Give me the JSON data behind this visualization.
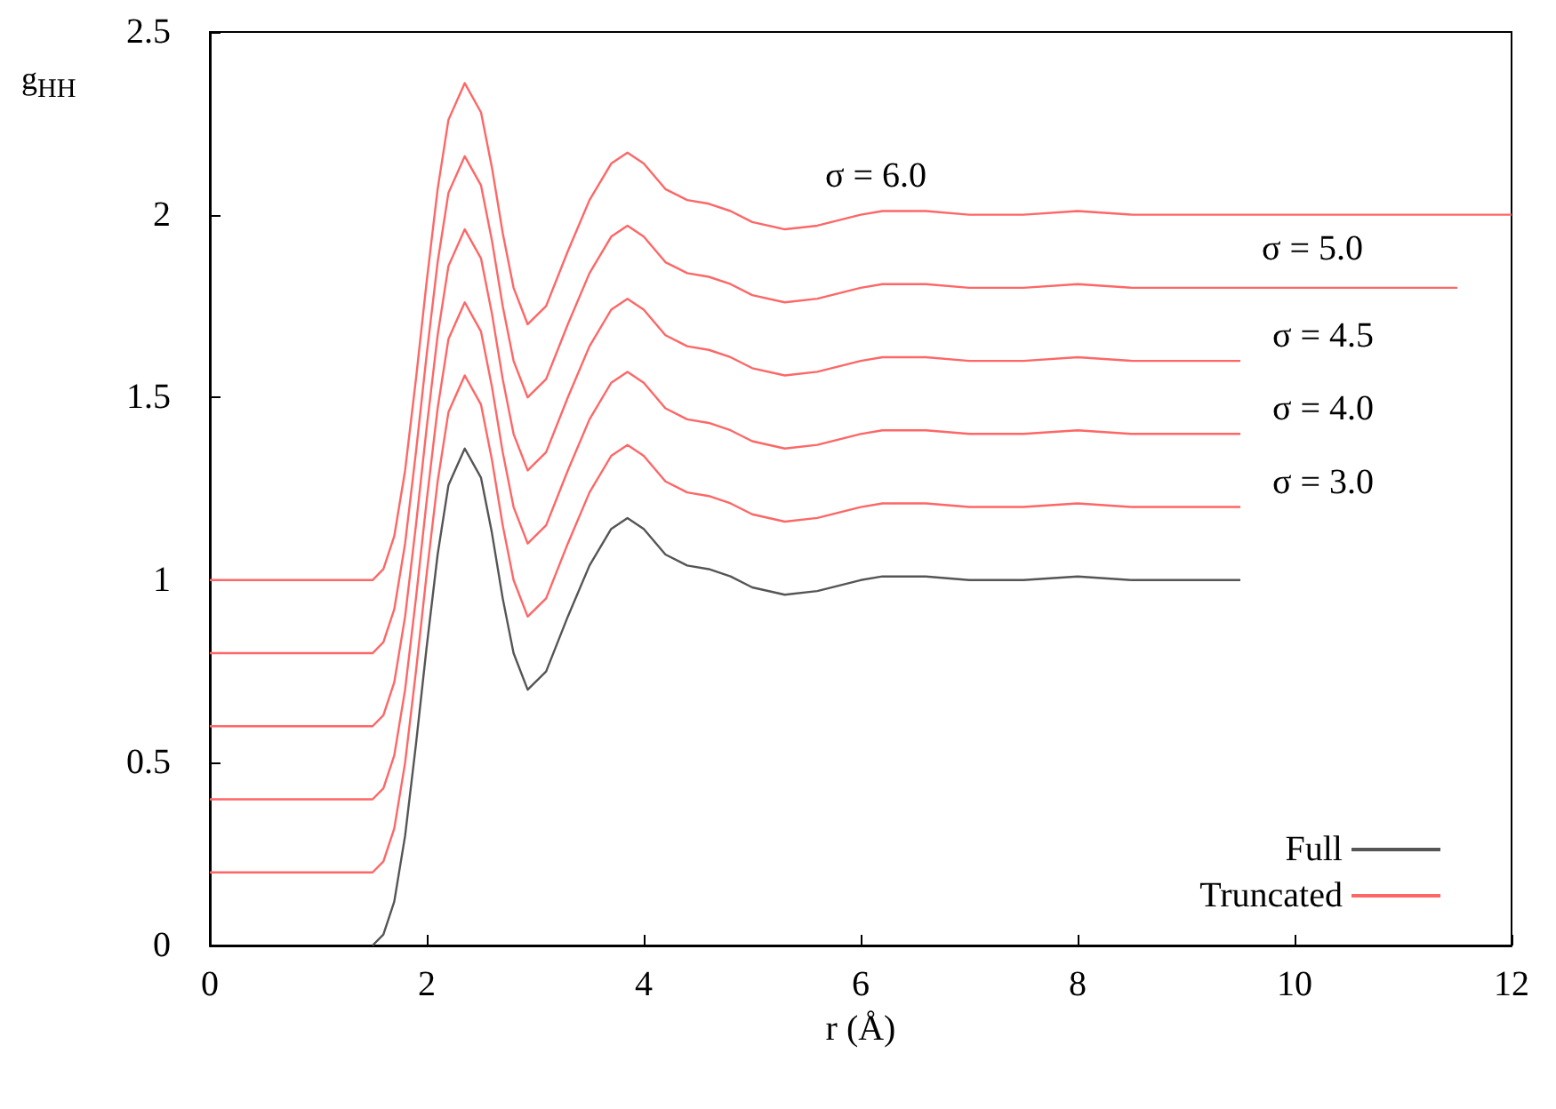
{
  "chart_data": {
    "type": "line",
    "xlabel": "r (Å)",
    "ylabel": "g$_{HH}$",
    "xlim": [
      0,
      12
    ],
    "xticks": [
      0,
      2,
      4,
      6,
      8,
      10,
      12
    ],
    "ylim": [
      0,
      2.5
    ],
    "yticks": [
      0,
      0.5,
      1,
      1.5,
      2,
      2.5
    ],
    "grid": false,
    "legend": "bottom right",
    "marker": "none",
    "line_style": "solid",
    "annotations": [
      "σ = 6.0",
      "σ = 5.0",
      "σ = 4.5",
      "σ = 4.0",
      "σ = 3.0"
    ],
    "series": [
      {
        "name": "Full",
        "color": "#555555",
        "x": [
          1.5,
          1.6,
          1.7,
          1.8,
          1.9,
          2.0,
          2.1,
          2.2,
          2.35,
          2.5,
          2.6,
          2.7,
          2.8,
          2.93,
          3.1,
          3.3,
          3.5,
          3.7,
          3.85,
          4.0,
          4.2,
          4.4,
          4.6,
          4.8,
          5.0,
          5.3,
          5.6,
          6.0,
          6.2,
          6.6,
          7.0,
          7.5,
          8.0,
          8.5,
          9.0,
          9.5
        ],
        "values": [
          0,
          0.03,
          0.12,
          0.3,
          0.55,
          0.82,
          1.07,
          1.26,
          1.36,
          1.28,
          1.13,
          0.95,
          0.8,
          0.7,
          0.75,
          0.9,
          1.04,
          1.14,
          1.17,
          1.14,
          1.07,
          1.04,
          1.03,
          1.01,
          0.98,
          0.96,
          0.97,
          1.0,
          1.01,
          1.01,
          1.0,
          1.0,
          1.01,
          1.0,
          1.0,
          1.0
        ]
      },
      {
        "name": "Truncated",
        "color": "#ff6666",
        "x": [
          0,
          1.5,
          1.6,
          1.7,
          1.8,
          1.9,
          2.0,
          2.1,
          2.2,
          2.35,
          2.5,
          2.6,
          2.7,
          2.8,
          2.93,
          3.1,
          3.3,
          3.5,
          3.7,
          3.85,
          4.0,
          4.2,
          4.4,
          4.6,
          4.8,
          5.0,
          5.3,
          5.6,
          6.0,
          6.2,
          6.6,
          7.0,
          7.5,
          8.0,
          8.5,
          9.0,
          9.5
        ],
        "values": [
          0.2,
          0.2,
          0.23,
          0.32,
          0.5,
          0.75,
          1.02,
          1.27,
          1.46,
          1.56,
          1.48,
          1.33,
          1.15,
          1.0,
          0.9,
          0.95,
          1.1,
          1.24,
          1.34,
          1.37,
          1.34,
          1.27,
          1.24,
          1.23,
          1.21,
          1.18,
          1.16,
          1.17,
          1.2,
          1.21,
          1.21,
          1.2,
          1.2,
          1.21,
          1.2,
          1.2,
          1.2
        ]
      },
      {
        "color": "#ff6666",
        "x": [
          0,
          1.5,
          1.6,
          1.7,
          1.8,
          1.9,
          2.0,
          2.1,
          2.2,
          2.35,
          2.5,
          2.6,
          2.7,
          2.8,
          2.93,
          3.1,
          3.3,
          3.5,
          3.7,
          3.85,
          4.0,
          4.2,
          4.4,
          4.6,
          4.8,
          5.0,
          5.3,
          5.6,
          6.0,
          6.2,
          6.6,
          7.0,
          7.5,
          8.0,
          8.5,
          9.0,
          9.5
        ],
        "values": [
          0.4,
          0.4,
          0.43,
          0.52,
          0.7,
          0.95,
          1.22,
          1.47,
          1.66,
          1.76,
          1.68,
          1.53,
          1.35,
          1.2,
          1.1,
          1.15,
          1.3,
          1.44,
          1.54,
          1.57,
          1.54,
          1.47,
          1.44,
          1.43,
          1.41,
          1.38,
          1.36,
          1.37,
          1.4,
          1.41,
          1.41,
          1.4,
          1.4,
          1.41,
          1.4,
          1.4,
          1.4
        ]
      },
      {
        "color": "#ff6666",
        "x": [
          0,
          1.5,
          1.6,
          1.7,
          1.8,
          1.9,
          2.0,
          2.1,
          2.2,
          2.35,
          2.5,
          2.6,
          2.7,
          2.8,
          2.93,
          3.1,
          3.3,
          3.5,
          3.7,
          3.85,
          4.0,
          4.2,
          4.4,
          4.6,
          4.8,
          5.0,
          5.3,
          5.6,
          6.0,
          6.2,
          6.6,
          7.0,
          7.5,
          8.0,
          8.5,
          9.0,
          9.5
        ],
        "values": [
          0.6,
          0.6,
          0.63,
          0.72,
          0.9,
          1.15,
          1.42,
          1.67,
          1.86,
          1.96,
          1.88,
          1.73,
          1.55,
          1.4,
          1.3,
          1.35,
          1.5,
          1.64,
          1.74,
          1.77,
          1.74,
          1.67,
          1.64,
          1.63,
          1.61,
          1.58,
          1.56,
          1.57,
          1.6,
          1.61,
          1.61,
          1.6,
          1.6,
          1.61,
          1.6,
          1.6,
          1.6
        ]
      },
      {
        "color": "#ff6666",
        "x": [
          0,
          1.5,
          1.6,
          1.7,
          1.8,
          1.9,
          2.0,
          2.1,
          2.2,
          2.35,
          2.5,
          2.6,
          2.7,
          2.8,
          2.93,
          3.1,
          3.3,
          3.5,
          3.7,
          3.85,
          4.0,
          4.2,
          4.4,
          4.6,
          4.8,
          5.0,
          5.3,
          5.6,
          6.0,
          6.2,
          6.6,
          7.0,
          7.5,
          8.0,
          8.5,
          9.0,
          9.5,
          10.5,
          11.5
        ],
        "values": [
          0.8,
          0.8,
          0.83,
          0.92,
          1.1,
          1.35,
          1.62,
          1.87,
          2.06,
          2.16,
          2.08,
          1.93,
          1.75,
          1.6,
          1.5,
          1.55,
          1.7,
          1.84,
          1.94,
          1.97,
          1.94,
          1.87,
          1.84,
          1.83,
          1.81,
          1.78,
          1.76,
          1.77,
          1.8,
          1.81,
          1.81,
          1.8,
          1.8,
          1.81,
          1.8,
          1.8,
          1.8,
          1.8,
          1.8
        ]
      },
      {
        "color": "#ff6666",
        "x": [
          0,
          1.5,
          1.6,
          1.7,
          1.8,
          1.9,
          2.0,
          2.1,
          2.2,
          2.35,
          2.5,
          2.6,
          2.7,
          2.8,
          2.93,
          3.1,
          3.3,
          3.5,
          3.7,
          3.85,
          4.0,
          4.2,
          4.4,
          4.6,
          4.8,
          5.0,
          5.3,
          5.6,
          6.0,
          6.2,
          6.6,
          7.0,
          7.5,
          8.0,
          8.5,
          9.0,
          9.5,
          10.5,
          12
        ],
        "values": [
          1.0,
          1.0,
          1.03,
          1.12,
          1.3,
          1.55,
          1.82,
          2.07,
          2.26,
          2.36,
          2.28,
          2.13,
          1.95,
          1.8,
          1.7,
          1.75,
          1.9,
          2.04,
          2.14,
          2.17,
          2.14,
          2.07,
          2.04,
          2.03,
          2.01,
          1.98,
          1.96,
          1.97,
          2.0,
          2.01,
          2.01,
          2.0,
          2.0,
          2.01,
          2.0,
          2.0,
          2.0,
          2.0,
          2.0
        ]
      }
    ]
  }
}
